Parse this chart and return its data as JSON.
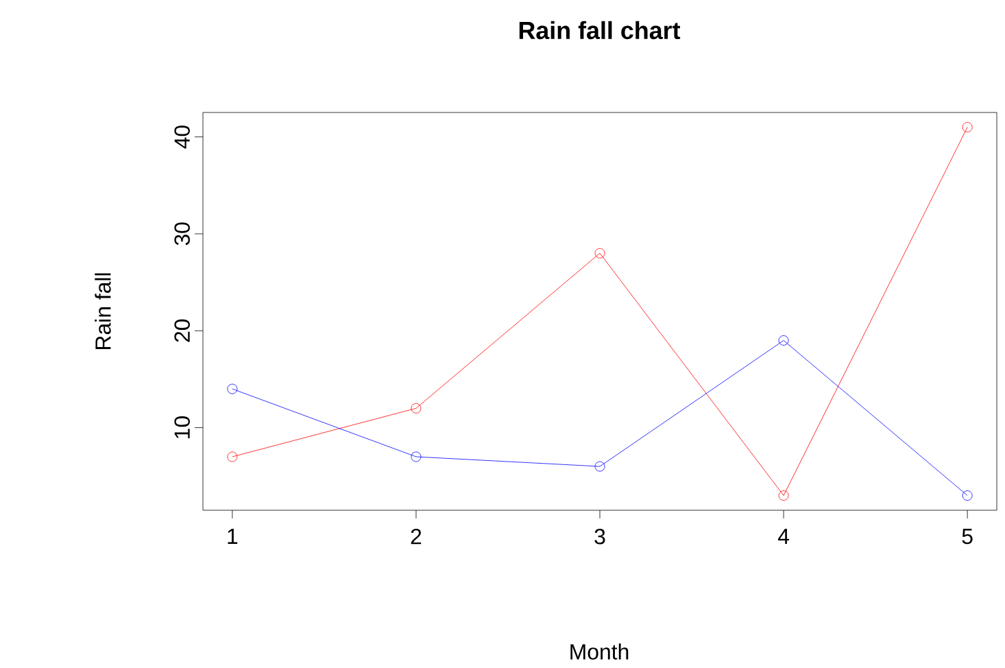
{
  "chart_data": {
    "type": "line",
    "title": "Rain fall chart",
    "xlabel": "Month",
    "ylabel": "Rain fall",
    "x": [
      1,
      2,
      3,
      4,
      5
    ],
    "series": [
      {
        "color": "#ff0000",
        "values": [
          7,
          12,
          28,
          3,
          41
        ]
      },
      {
        "color": "#0000ff",
        "values": [
          14,
          7,
          6,
          19,
          3
        ]
      }
    ],
    "xlim": [
      0.84,
      5.16
    ],
    "ylim": [
      1.48,
      42.52
    ],
    "xticks": [
      1,
      2,
      3,
      4,
      5
    ],
    "yticks": [
      10,
      20,
      30,
      40
    ],
    "marker": "circle",
    "line_style": "solid",
    "grid": false
  }
}
